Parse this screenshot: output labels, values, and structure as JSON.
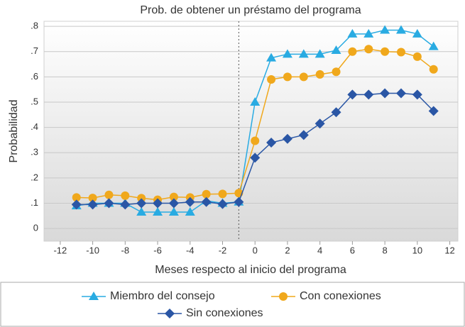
{
  "chart_data": {
    "type": "line",
    "title": "Prob. de obtener un préstamo del programa",
    "x_label": "Meses respecto al inicio del programa",
    "y_label": "Probabilidad",
    "x": [
      -11,
      -10,
      -9,
      -8,
      -7,
      -6,
      -5,
      -4,
      -3,
      -2,
      -1,
      0,
      1,
      2,
      3,
      4,
      5,
      6,
      7,
      8,
      9,
      10,
      11
    ],
    "series": [
      {
        "name": "Miembro del consejo",
        "color": "#29abe2",
        "marker": "triangle",
        "values": [
          0.09,
          0.1,
          0.1,
          0.1,
          0.065,
          0.065,
          0.065,
          0.065,
          0.11,
          0.1,
          0.105,
          0.5,
          0.675,
          0.69,
          0.69,
          0.69,
          0.705,
          0.77,
          0.77,
          0.785,
          0.785,
          0.77,
          0.72
        ]
      },
      {
        "name": "Con conexiones",
        "color": "#f0a81c",
        "marker": "circle",
        "values": [
          0.123,
          0.121,
          0.133,
          0.13,
          0.12,
          0.114,
          0.125,
          0.123,
          0.136,
          0.137,
          0.14,
          0.347,
          0.59,
          0.6,
          0.6,
          0.61,
          0.62,
          0.7,
          0.71,
          0.7,
          0.698,
          0.68,
          0.63
        ]
      },
      {
        "name": "Sin conexiones",
        "color": "#2a56a5",
        "marker": "diamond",
        "values": [
          0.095,
          0.095,
          0.1,
          0.095,
          0.1,
          0.1,
          0.1,
          0.105,
          0.105,
          0.097,
          0.105,
          0.28,
          0.34,
          0.355,
          0.37,
          0.415,
          0.46,
          0.53,
          0.53,
          0.535,
          0.535,
          0.53,
          0.465
        ]
      }
    ],
    "xlim": [
      -13,
      12.5
    ],
    "xticks": [
      -12,
      -10,
      -8,
      -6,
      -4,
      -2,
      0,
      2,
      4,
      6,
      8,
      10,
      12
    ],
    "ylim": [
      -0.05,
      0.82
    ],
    "yticks": [
      0,
      {
        "value": 0.1,
        "label": ".1"
      },
      {
        "value": 0.2,
        "label": ".2"
      },
      {
        "value": 0.3,
        "label": ".3"
      },
      {
        "value": 0.4,
        "label": ".4"
      },
      {
        "value": 0.5,
        "label": ".5"
      },
      {
        "value": 0.6,
        "label": ".6"
      },
      {
        "value": 0.7,
        "label": ".7"
      },
      {
        "value": 0.8,
        "label": ".8"
      }
    ],
    "vline": -1,
    "grid": true
  }
}
